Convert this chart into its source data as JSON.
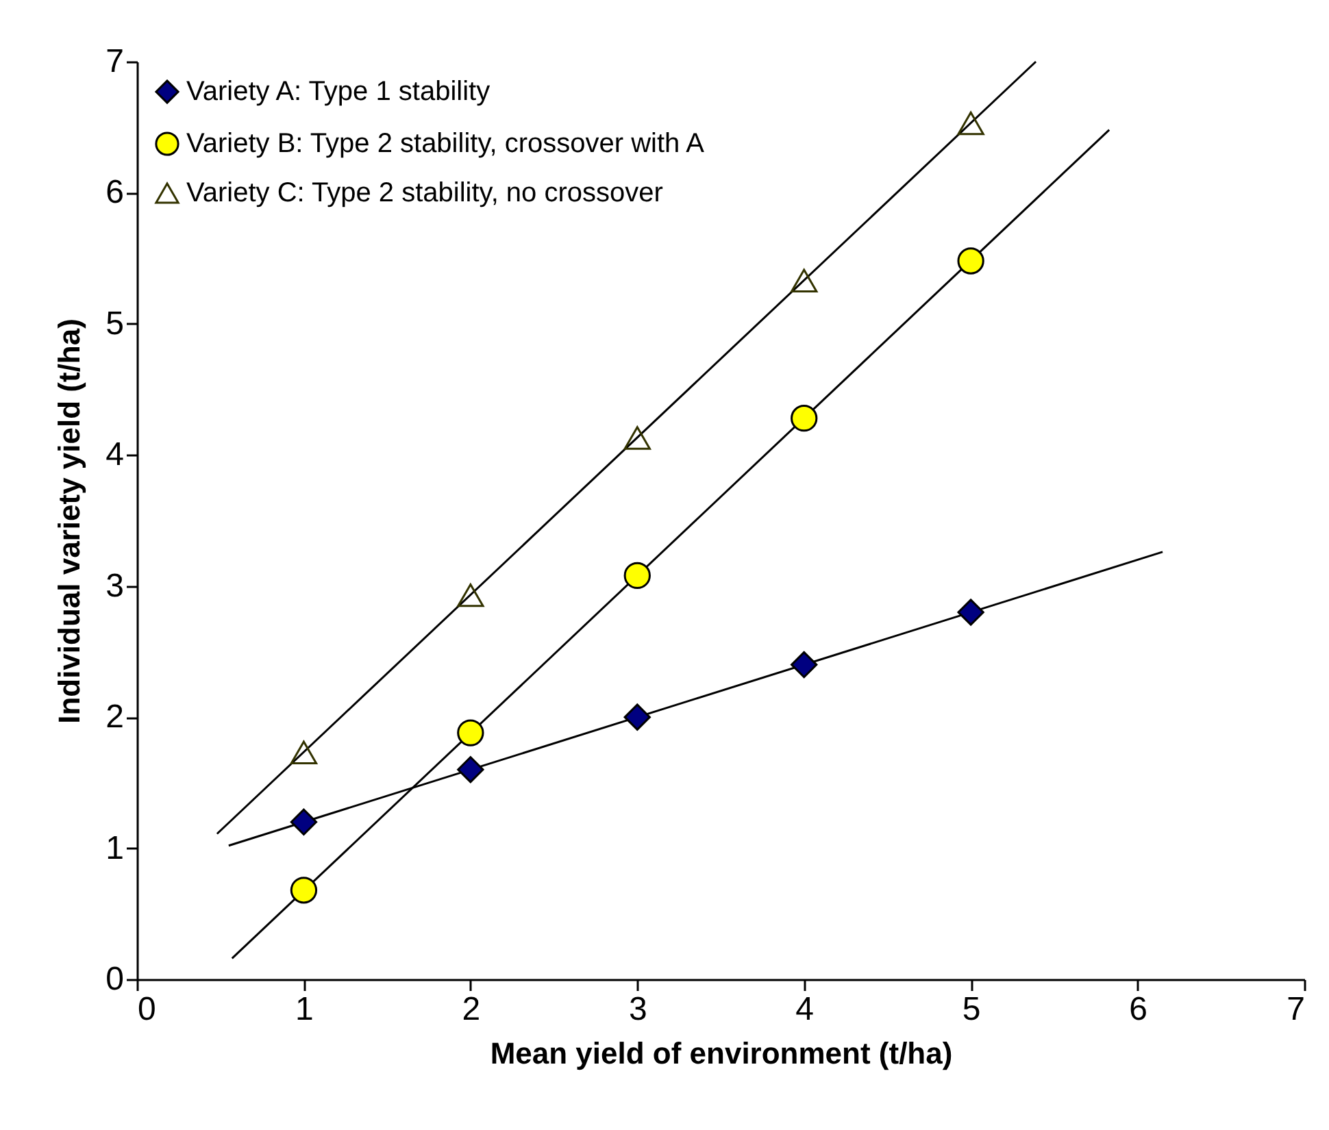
{
  "chart_data": {
    "type": "scatter",
    "xlabel": "Mean yield of environment (t/ha)",
    "ylabel": "Individual variety yield (t/ha)",
    "xlim": [
      0,
      7
    ],
    "ylim": [
      0,
      7
    ],
    "xticks": [
      0,
      1,
      2,
      3,
      4,
      5,
      6,
      7
    ],
    "yticks": [
      0,
      1,
      2,
      3,
      4,
      5,
      6,
      7
    ],
    "grid": false,
    "legend": "top left",
    "series": [
      {
        "name": "Variety A: Type 1 stability",
        "color": "#000080",
        "marker": "diamond",
        "x": [
          1,
          2,
          3,
          4,
          5
        ],
        "values": [
          1.2,
          1.6,
          2.0,
          2.4,
          2.8
        ]
      },
      {
        "name": "Variety B: Type 2 stability, crossover with A",
        "color": "#ffff00",
        "marker": "circle",
        "x": [
          1,
          2,
          3,
          4,
          5
        ],
        "values": [
          0.68,
          1.88,
          3.08,
          4.28,
          5.48
        ]
      },
      {
        "name": "Variety C: Type 2 stability, no crossover",
        "color": "#333300",
        "marker": "triangle",
        "x": [
          1,
          2,
          3,
          4,
          5
        ],
        "values": [
          1.73,
          2.93,
          4.13,
          5.33,
          6.53
        ]
      },
      {
        "type": "line",
        "color": "#000000",
        "x": [
          0.55,
          6.15
        ],
        "values": [
          1.02,
          3.26
        ]
      },
      {
        "type": "line",
        "color": "#000000",
        "x": [
          0.57,
          5.83
        ],
        "values": [
          0.16,
          6.48
        ]
      },
      {
        "type": "line",
        "color": "#000000",
        "x": [
          0.48,
          5.39
        ],
        "values": [
          1.11,
          7.0
        ]
      }
    ]
  }
}
